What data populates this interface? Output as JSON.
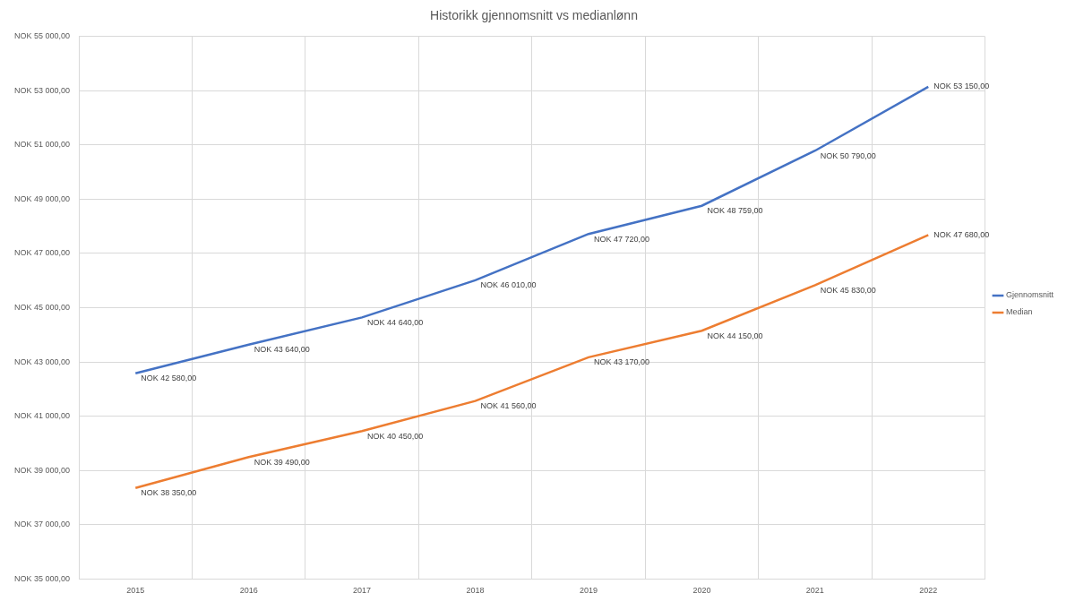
{
  "chart_data": {
    "type": "line",
    "title": "Historikk gjennomsnitt vs medianlønn",
    "categories": [
      "2015",
      "2016",
      "2017",
      "2018",
      "2019",
      "2020",
      "2021",
      "2022"
    ],
    "series": [
      {
        "name": "Gjennomsnitt",
        "color": "#4472c4",
        "marker": "none",
        "line_style": "solid",
        "values": [
          42580,
          43640,
          44640,
          46010,
          47720,
          48759,
          50790,
          53150
        ],
        "value_labels": [
          "NOK 42 580,00",
          "NOK 43 640,00",
          "NOK 44 640,00",
          "NOK 46 010,00",
          "NOK 47 720,00",
          "NOK 48 759,00",
          "NOK 50 790,00",
          "NOK 53 150,00"
        ]
      },
      {
        "name": "Median",
        "color": "#ed7d31",
        "marker": "none",
        "line_style": "solid",
        "values": [
          38350,
          39490,
          40450,
          41560,
          43170,
          44150,
          45830,
          47680
        ],
        "value_labels": [
          "NOK 38 350,00",
          "NOK 39 490,00",
          "NOK 40 450,00",
          "NOK 41 560,00",
          "NOK 43 170,00",
          "NOK 44 150,00",
          "NOK 45 830,00",
          "NOK 47 680,00"
        ]
      }
    ],
    "ylim": [
      35000,
      55000
    ],
    "yticks": [
      {
        "value": 35000,
        "label": "NOK 35 000,00"
      },
      {
        "value": 37000,
        "label": "NOK 37 000,00"
      },
      {
        "value": 39000,
        "label": "NOK 39 000,00"
      },
      {
        "value": 41000,
        "label": "NOK 41 000,00"
      },
      {
        "value": 43000,
        "label": "NOK 43 000,00"
      },
      {
        "value": 45000,
        "label": "NOK 45 000,00"
      },
      {
        "value": 47000,
        "label": "NOK 47 000,00"
      },
      {
        "value": 49000,
        "label": "NOK 49 000,00"
      },
      {
        "value": 51000,
        "label": "NOK 51 000,00"
      },
      {
        "value": 53000,
        "label": "NOK 53 000,00"
      },
      {
        "value": 55000,
        "label": "NOK 55 000,00"
      }
    ],
    "grid": true,
    "legend": "right",
    "data_labels": true
  }
}
